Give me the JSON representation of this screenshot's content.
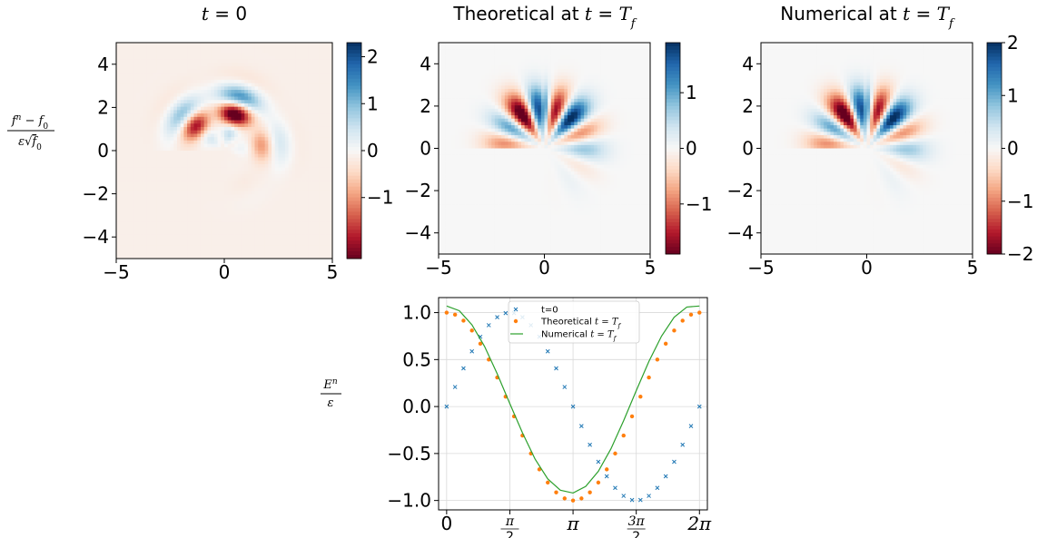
{
  "figure": {
    "row_label": "f^n - f_0 over epsilon sqrt(f_0)",
    "bottom_ylabel": "E^n over epsilon"
  },
  "chart_data": [
    {
      "type": "heatmap",
      "title": "t = 0",
      "title_parts": [
        "t",
        " = 0"
      ],
      "xlim": [
        -5,
        5
      ],
      "ylim": [
        -5,
        5
      ],
      "xticks": [
        -5,
        0,
        5
      ],
      "yticks": [
        -4,
        -2,
        0,
        2,
        4
      ],
      "colorbar": {
        "range": [
          -2.3,
          2.3
        ],
        "ticks": [
          -1,
          0,
          1,
          2
        ],
        "cmap": "RdBu"
      },
      "resolution": 64,
      "field": {
        "mode": 0,
        "phase": "sin",
        "amplitude": 2.3,
        "background": -0.1
      }
    },
    {
      "type": "heatmap",
      "title": "Theoretical at t = T_f",
      "title_parts": [
        "Theoretical at ",
        "t",
        " = ",
        "T",
        "f"
      ],
      "xlim": [
        -5,
        5
      ],
      "ylim": [
        -5,
        5
      ],
      "xticks": [
        -5,
        0,
        5
      ],
      "yticks": [
        -4,
        -2,
        0,
        2,
        4
      ],
      "colorbar": {
        "range": [
          -1.9,
          1.9
        ],
        "ticks": [
          -1,
          0,
          1
        ],
        "cmap": "RdBu"
      },
      "resolution": 64,
      "field": {
        "mode": 1,
        "phase": "cos",
        "amplitude": 1.9,
        "background": 0
      }
    },
    {
      "type": "heatmap",
      "title": "Numerical at t = T_f",
      "title_parts": [
        "Numerical at ",
        "t",
        " = ",
        "T",
        "f"
      ],
      "xlim": [
        -5,
        5
      ],
      "ylim": [
        -5,
        5
      ],
      "xticks": [
        -5,
        0,
        5
      ],
      "yticks": [
        -4,
        -2,
        0,
        2,
        4
      ],
      "colorbar": {
        "range": [
          -2,
          2
        ],
        "ticks": [
          -2,
          -1,
          0,
          1,
          2
        ],
        "cmap": "RdBu"
      },
      "resolution": 64,
      "field": {
        "mode": 1,
        "phase": "cos",
        "amplitude": 2.0,
        "background": 0
      }
    },
    {
      "type": "line",
      "xlim": [
        -0.2,
        6.48
      ],
      "ylim": [
        -1.1,
        1.16
      ],
      "xticks": [
        {
          "value": 0,
          "label": "0"
        },
        {
          "value": 1.5708,
          "label": "π/2"
        },
        {
          "value": 3.1416,
          "label": "π"
        },
        {
          "value": 4.7124,
          "label": "3π/2"
        },
        {
          "value": 6.2832,
          "label": "2π"
        }
      ],
      "yticks": [
        {
          "value": -1.0,
          "label": "−1.0"
        },
        {
          "value": -0.5,
          "label": "−0.5"
        },
        {
          "value": 0.0,
          "label": "0.0"
        },
        {
          "value": 0.5,
          "label": "0.5"
        },
        {
          "value": 1.0,
          "label": "1.0"
        }
      ],
      "grid": true,
      "legend_position": "top-center",
      "series": [
        {
          "name": "t=0",
          "style": "x-markers",
          "color": "#1f77b4",
          "x": [
            0,
            0.2094,
            0.4189,
            0.6283,
            0.8378,
            1.0472,
            1.2566,
            1.4661,
            1.6755,
            1.885,
            2.0944,
            2.3038,
            2.5133,
            2.7227,
            2.9322,
            3.1416,
            3.351,
            3.5605,
            3.7699,
            3.9794,
            4.1888,
            4.3982,
            4.6077,
            4.8171,
            5.0265,
            5.236,
            5.4454,
            5.6549,
            5.8643,
            6.0737,
            6.2832
          ],
          "y": [
            0,
            0.208,
            0.407,
            0.588,
            0.743,
            0.866,
            0.951,
            0.995,
            0.995,
            0.951,
            0.866,
            0.743,
            0.588,
            0.407,
            0.208,
            0,
            -0.208,
            -0.407,
            -0.588,
            -0.743,
            -0.866,
            -0.951,
            -0.995,
            -0.995,
            -0.951,
            -0.866,
            -0.743,
            -0.588,
            -0.407,
            -0.208,
            0
          ]
        },
        {
          "name": "Theoretical t = T_f",
          "style": "dot-markers",
          "color": "#ff7f0e",
          "x": [
            0,
            0.2094,
            0.4189,
            0.6283,
            0.8378,
            1.0472,
            1.2566,
            1.4661,
            1.6755,
            1.885,
            2.0944,
            2.3038,
            2.5133,
            2.7227,
            2.9322,
            3.1416,
            3.351,
            3.5605,
            3.7699,
            3.9794,
            4.1888,
            4.3982,
            4.6077,
            4.8171,
            5.0265,
            5.236,
            5.4454,
            5.6549,
            5.8643,
            6.0737,
            6.2832
          ],
          "y": [
            1.0,
            0.978,
            0.914,
            0.809,
            0.669,
            0.5,
            0.309,
            0.105,
            -0.105,
            -0.309,
            -0.5,
            -0.669,
            -0.809,
            -0.914,
            -0.978,
            -1.0,
            -0.978,
            -0.914,
            -0.809,
            -0.669,
            -0.5,
            -0.309,
            -0.105,
            0.105,
            0.309,
            0.5,
            0.669,
            0.809,
            0.914,
            0.978,
            1.0
          ]
        },
        {
          "name": "Numerical t = T_f",
          "style": "line",
          "color": "#2ca02c",
          "x": [
            0,
            0.3142,
            0.6283,
            0.9425,
            1.2566,
            1.5708,
            1.885,
            2.1991,
            2.5133,
            2.8274,
            3.1416,
            3.4558,
            3.7699,
            4.0841,
            4.3982,
            4.7124,
            5.0265,
            5.3407,
            5.6549,
            5.969,
            6.2832
          ],
          "y": [
            1.07,
            1.02,
            0.87,
            0.64,
            0.35,
            0.03,
            -0.28,
            -0.56,
            -0.77,
            -0.89,
            -0.92,
            -0.85,
            -0.69,
            -0.45,
            -0.15,
            0.17,
            0.48,
            0.75,
            0.95,
            1.06,
            1.07
          ]
        }
      ]
    }
  ]
}
